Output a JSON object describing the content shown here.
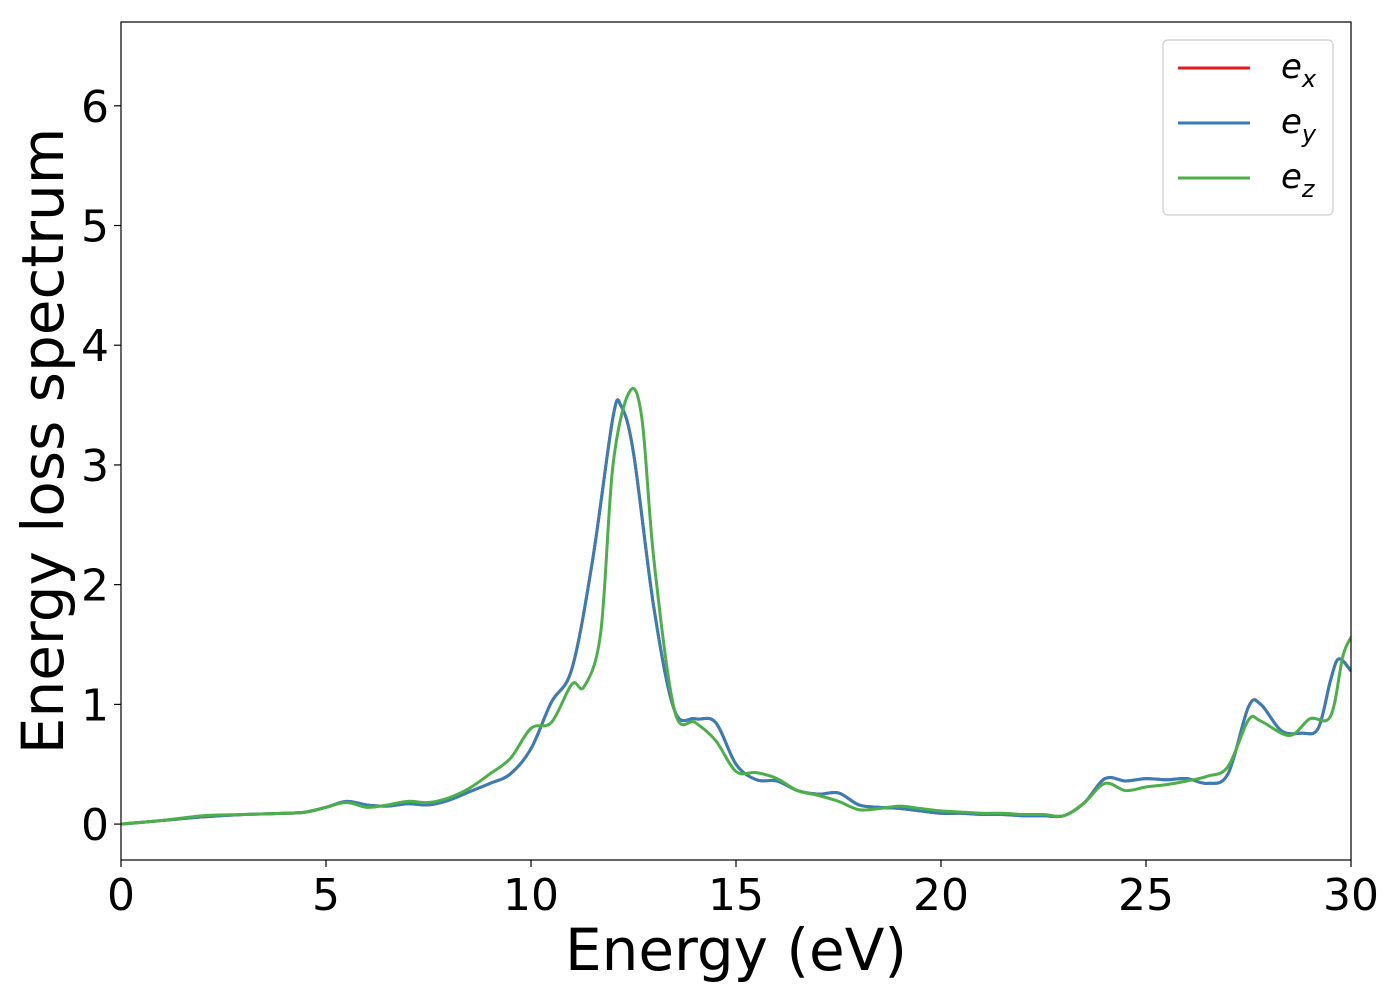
{
  "chart_data": {
    "type": "line",
    "title": "",
    "xlabel": "Energy (eV)",
    "ylabel": "Energy loss spectrum",
    "xlim": [
      0,
      30
    ],
    "ylim": [
      -0.3,
      6.7
    ],
    "xticks": [
      0,
      5,
      10,
      15,
      20,
      25,
      30
    ],
    "yticks": [
      0,
      1,
      2,
      3,
      4,
      5,
      6
    ],
    "grid": false,
    "legend_position": "top-right",
    "series": [
      {
        "name": "e_x",
        "legend_base": "e",
        "legend_sub": "x",
        "color": "#e41a1c",
        "x": [
          0,
          1,
          2,
          3,
          4,
          4.5,
          5,
          5.5,
          6,
          6.5,
          7,
          7.5,
          8,
          8.5,
          9,
          9.5,
          10,
          10.5,
          11,
          11.5,
          12,
          12.2,
          12.5,
          13,
          13.5,
          14,
          14.5,
          15,
          15.5,
          16,
          16.5,
          17,
          17.5,
          18,
          18.5,
          19,
          19.5,
          20,
          20.5,
          21,
          21.5,
          22,
          22.5,
          23,
          23.5,
          24,
          24.5,
          25,
          25.5,
          26,
          26.5,
          27,
          27.5,
          27.8,
          28.3,
          28.8,
          29.2,
          29.5,
          29.7,
          30
        ],
        "y": [
          0,
          0.03,
          0.06,
          0.08,
          0.09,
          0.1,
          0.14,
          0.19,
          0.16,
          0.15,
          0.17,
          0.16,
          0.2,
          0.27,
          0.34,
          0.42,
          0.63,
          1.02,
          1.3,
          2.2,
          3.4,
          3.49,
          3.1,
          1.8,
          0.95,
          0.88,
          0.85,
          0.5,
          0.37,
          0.36,
          0.28,
          0.25,
          0.26,
          0.16,
          0.14,
          0.13,
          0.11,
          0.09,
          0.09,
          0.08,
          0.08,
          0.07,
          0.07,
          0.07,
          0.18,
          0.38,
          0.36,
          0.38,
          0.37,
          0.38,
          0.34,
          0.42,
          0.98,
          1.0,
          0.78,
          0.76,
          0.8,
          1.2,
          1.38,
          1.28
        ]
      },
      {
        "name": "e_y",
        "legend_base": "e",
        "legend_sub": "y",
        "color": "#377eb8",
        "x": [
          0,
          1,
          2,
          3,
          4,
          4.5,
          5,
          5.5,
          6,
          6.5,
          7,
          7.5,
          8,
          8.5,
          9,
          9.5,
          10,
          10.5,
          11,
          11.5,
          12,
          12.2,
          12.5,
          13,
          13.5,
          14,
          14.5,
          15,
          15.5,
          16,
          16.5,
          17,
          17.5,
          18,
          18.5,
          19,
          19.5,
          20,
          20.5,
          21,
          21.5,
          22,
          22.5,
          23,
          23.5,
          24,
          24.5,
          25,
          25.5,
          26,
          26.5,
          27,
          27.5,
          27.8,
          28.3,
          28.8,
          29.2,
          29.5,
          29.7,
          30
        ],
        "y": [
          0,
          0.03,
          0.06,
          0.08,
          0.09,
          0.1,
          0.14,
          0.19,
          0.16,
          0.15,
          0.17,
          0.16,
          0.2,
          0.27,
          0.34,
          0.42,
          0.63,
          1.02,
          1.3,
          2.2,
          3.4,
          3.49,
          3.1,
          1.8,
          0.95,
          0.88,
          0.85,
          0.5,
          0.37,
          0.36,
          0.28,
          0.25,
          0.26,
          0.16,
          0.14,
          0.13,
          0.11,
          0.09,
          0.09,
          0.08,
          0.08,
          0.07,
          0.07,
          0.07,
          0.18,
          0.38,
          0.36,
          0.38,
          0.37,
          0.38,
          0.34,
          0.42,
          0.98,
          1.0,
          0.78,
          0.76,
          0.8,
          1.2,
          1.38,
          1.28
        ]
      },
      {
        "name": "e_z",
        "legend_base": "e",
        "legend_sub": "z",
        "color": "#4daf4a",
        "x": [
          0,
          1,
          2,
          3,
          4,
          4.5,
          5,
          5.5,
          6,
          6.5,
          7,
          7.5,
          8,
          8.5,
          9,
          9.5,
          10,
          10.5,
          11,
          11.3,
          11.7,
          12,
          12.4,
          12.7,
          13,
          13.5,
          14,
          14.5,
          15,
          15.5,
          16,
          16.5,
          17,
          17.5,
          18,
          18.5,
          19,
          19.5,
          20,
          20.5,
          21,
          21.5,
          22,
          22.5,
          23,
          23.5,
          24,
          24.5,
          25,
          25.5,
          26,
          26.5,
          27,
          27.5,
          27.8,
          28.5,
          29,
          29.5,
          29.8,
          30
        ],
        "y": [
          0,
          0.03,
          0.07,
          0.08,
          0.09,
          0.1,
          0.14,
          0.18,
          0.14,
          0.16,
          0.19,
          0.18,
          0.22,
          0.3,
          0.42,
          0.55,
          0.8,
          0.85,
          1.17,
          1.15,
          1.6,
          3.0,
          3.61,
          3.4,
          2.2,
          0.95,
          0.85,
          0.7,
          0.44,
          0.43,
          0.38,
          0.28,
          0.24,
          0.19,
          0.12,
          0.13,
          0.15,
          0.13,
          0.11,
          0.1,
          0.09,
          0.09,
          0.08,
          0.08,
          0.07,
          0.18,
          0.34,
          0.28,
          0.31,
          0.33,
          0.36,
          0.4,
          0.48,
          0.87,
          0.86,
          0.74,
          0.88,
          0.9,
          1.4,
          1.56
        ]
      }
    ]
  }
}
